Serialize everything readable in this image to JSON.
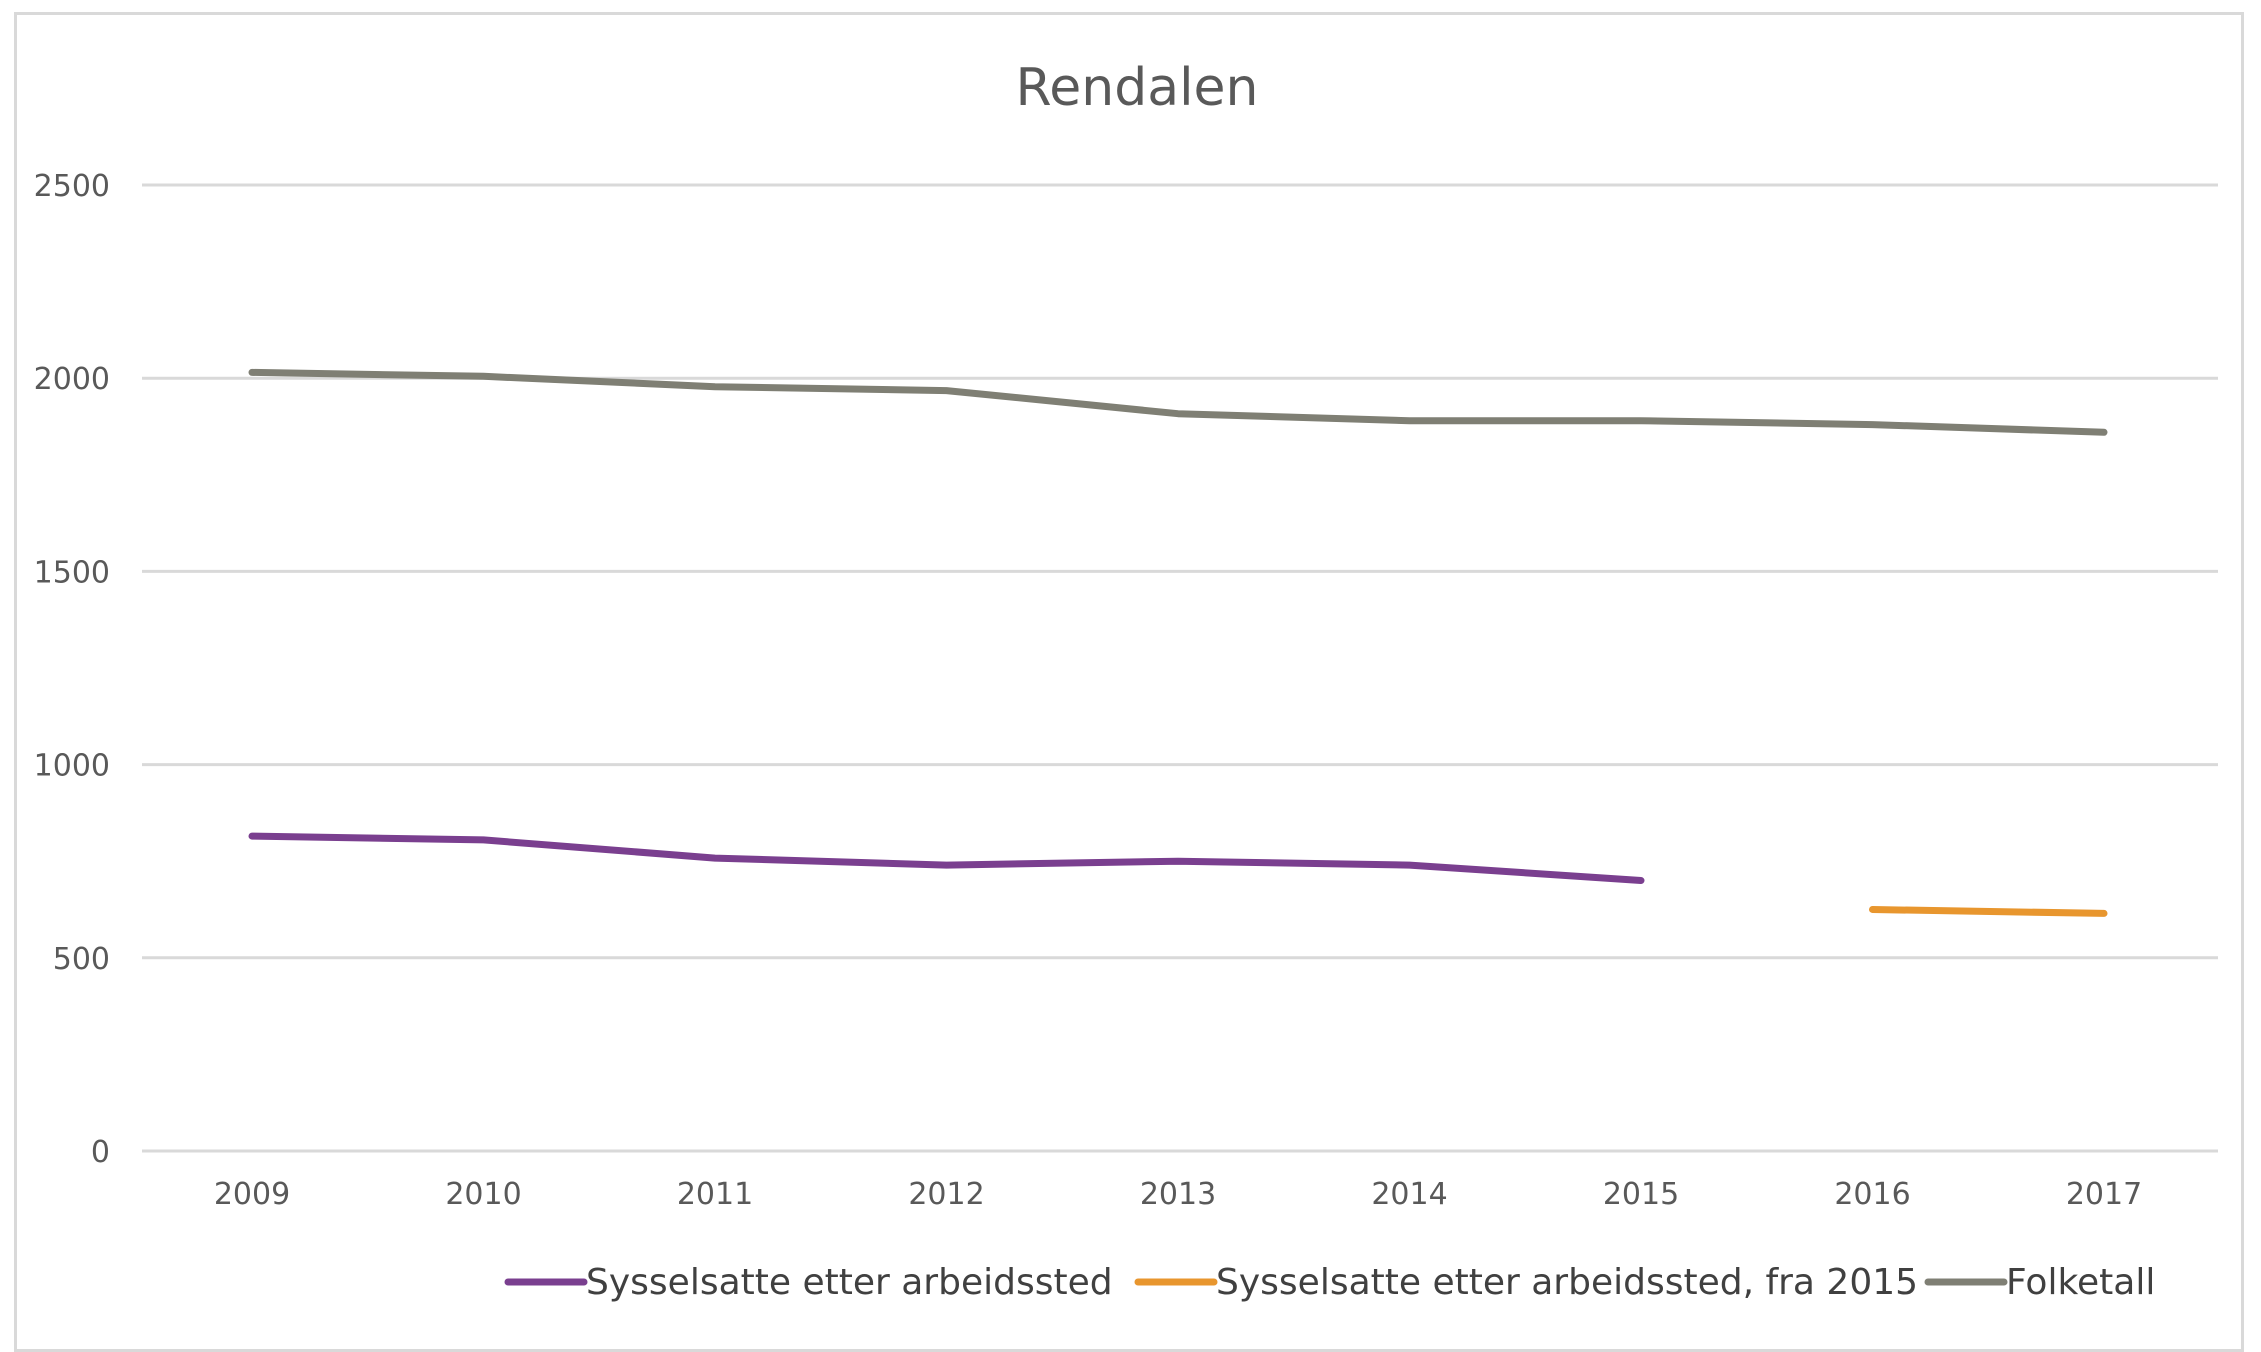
{
  "chart_data": {
    "type": "line",
    "title": "Rendalen",
    "xlabel": "",
    "ylabel": "",
    "categories": [
      "2009",
      "2010",
      "2011",
      "2012",
      "2013",
      "2014",
      "2015",
      "2016",
      "2017"
    ],
    "ylim": [
      0,
      2500
    ],
    "yticks": [
      "0",
      "500",
      "1000",
      "1500",
      "2000",
      "2500"
    ],
    "grid": true,
    "legend_position": "bottom",
    "series": [
      {
        "name": "Sysselsatte etter arbeidssted",
        "color": "#7a3f8f",
        "values": [
          815,
          805,
          758,
          740,
          750,
          740,
          700,
          null,
          null
        ]
      },
      {
        "name": "Sysselsatte etter arbeidssted, fra 2015",
        "color": "#e8962e",
        "values": [
          null,
          null,
          null,
          null,
          null,
          null,
          null,
          625,
          615
        ]
      },
      {
        "name": "Folketall",
        "color": "#7f7f74",
        "values": [
          2015,
          2005,
          1978,
          1968,
          1908,
          1890,
          1890,
          1880,
          1860
        ]
      }
    ]
  }
}
